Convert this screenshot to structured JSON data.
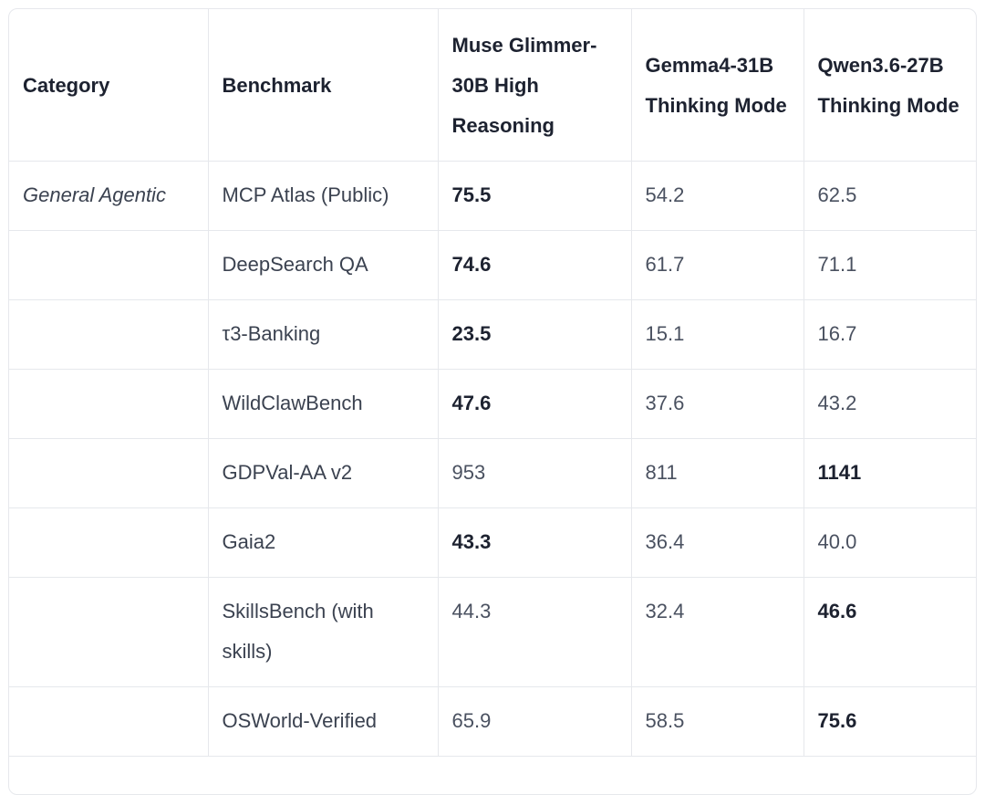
{
  "table": {
    "headers": [
      "Category",
      "Benchmark",
      "Muse Glimmer-30B High Reasoning",
      "Gemma4-31B Thinking Mode",
      "Qwen3.6-27B Thinking Mode"
    ],
    "rows": [
      {
        "category": "General Agentic",
        "benchmark": "MCP Atlas (Public)",
        "muse": "75.5",
        "gemma": "54.2",
        "qwen": "62.5"
      },
      {
        "category": "",
        "benchmark": "DeepSearch QA",
        "muse": "74.6",
        "gemma": "61.7",
        "qwen": "71.1"
      },
      {
        "category": "",
        "benchmark": "τ3-Banking",
        "muse": "23.5",
        "gemma": "15.1",
        "qwen": "16.7"
      },
      {
        "category": "",
        "benchmark": "WildClawBench",
        "muse": "47.6",
        "gemma": "37.6",
        "qwen": "43.2"
      },
      {
        "category": "",
        "benchmark": "GDPVal-AA v2",
        "muse": "953",
        "gemma": "811",
        "qwen": "1141"
      },
      {
        "category": "",
        "benchmark": "Gaia2",
        "muse": "43.3",
        "gemma": "36.4",
        "qwen": "40.0"
      },
      {
        "category": "",
        "benchmark": "SkillsBench (with skills)",
        "muse": "44.3",
        "gemma": "32.4",
        "qwen": "46.6"
      },
      {
        "category": "",
        "benchmark": "OSWorld-Verified",
        "muse": "65.9",
        "gemma": "58.5",
        "qwen": "75.6"
      }
    ]
  }
}
